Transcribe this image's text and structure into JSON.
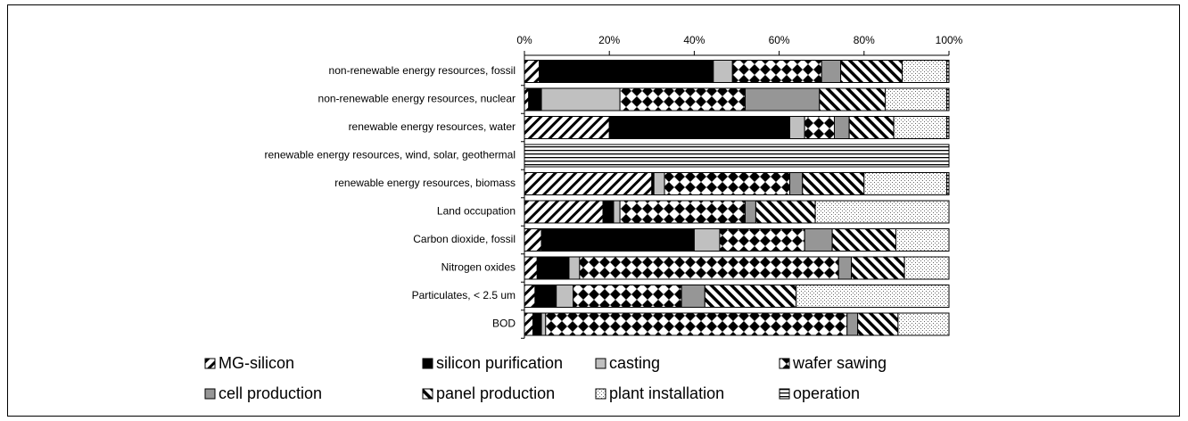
{
  "chart_data": {
    "type": "stacked-bar-horizontal",
    "categories": [
      "non-renewable energy resources, fossil",
      "non-renewable energy resources, nuclear",
      "renewable energy resources, water",
      "renewable energy resources, wind, solar, geothermal",
      "renewable energy resources, biomass",
      "Land occupation",
      "Carbon dioxide, fossil",
      "Nitrogen oxides",
      "Particulates, < 2.5 um",
      "BOD"
    ],
    "series": [
      {
        "name": "MG-silicon",
        "color": "#000000",
        "pattern": "diagonal",
        "values": [
          3.5,
          1,
          20,
          0,
          30,
          18.5,
          4,
          3,
          2.5,
          2
        ]
      },
      {
        "name": "silicon purification",
        "color": "#000000",
        "pattern": "solid",
        "values": [
          41,
          3,
          42.5,
          0,
          0.5,
          2.5,
          36,
          7.5,
          5,
          2
        ]
      },
      {
        "name": "casting",
        "color": "#c0c0c0",
        "pattern": "solid",
        "values": [
          4.5,
          18.5,
          3.5,
          0,
          2.5,
          1.5,
          6,
          2.5,
          4,
          1
        ]
      },
      {
        "name": "wafer sawing",
        "color": "#000000",
        "pattern": "checker",
        "values": [
          21,
          29.5,
          7,
          0,
          29.5,
          29.5,
          20,
          61,
          25.5,
          71
        ]
      },
      {
        "name": "cell production",
        "color": "#969696",
        "pattern": "solid",
        "values": [
          4.5,
          17.5,
          3.5,
          0,
          3,
          2.5,
          6.5,
          3,
          5.5,
          2.5
        ]
      },
      {
        "name": "panel production",
        "color": "#000000",
        "pattern": "backslash",
        "values": [
          14.5,
          15.5,
          10.5,
          0,
          14.5,
          14,
          15,
          12.5,
          21.5,
          9.5
        ]
      },
      {
        "name": "plant installation",
        "color": "#808080",
        "pattern": "dots",
        "values": [
          10.5,
          14.5,
          12.5,
          0,
          19.5,
          31.5,
          12.5,
          10.5,
          36,
          12
        ]
      },
      {
        "name": "operation",
        "color": "#000000",
        "pattern": "horizontal",
        "values": [
          0.5,
          0.5,
          0.5,
          100,
          0.5,
          0,
          0,
          0,
          0,
          0
        ]
      }
    ],
    "xlim": [
      0,
      100
    ],
    "xticks": [
      {
        "value": 0,
        "label": "0%"
      },
      {
        "value": 20,
        "label": "20%"
      },
      {
        "value": 40,
        "label": "40%"
      },
      {
        "value": 60,
        "label": "60%"
      },
      {
        "value": 80,
        "label": "80%"
      },
      {
        "value": 100,
        "label": "100%"
      }
    ]
  }
}
